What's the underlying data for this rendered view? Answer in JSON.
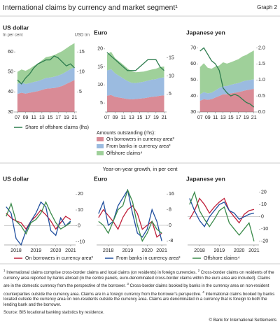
{
  "header": {
    "title": "International claims by currency and market segment¹",
    "graph_label": "Graph 2"
  },
  "legend_heading": "Amounts outstanding (rhs):",
  "section_title": "Year-on-year growth, in per cent",
  "chart_data": [
    {
      "type": "area",
      "title": "US dollar",
      "y_label": "In per cent",
      "y2_label": "USD trn",
      "x": [
        2007,
        2008,
        2009,
        2010,
        2011,
        2012,
        2013,
        2014,
        2015,
        2016,
        2017,
        2018,
        2019,
        2020,
        2021
      ],
      "xlim": [
        2006.5,
        2021.6
      ],
      "xticks": [
        {
          "value": 2007,
          "label": "07"
        },
        {
          "value": 2009,
          "label": "09"
        },
        {
          "value": 2011,
          "label": "11"
        },
        {
          "value": 2013,
          "label": "13"
        },
        {
          "value": 2015,
          "label": "15"
        },
        {
          "value": 2017,
          "label": "17"
        },
        {
          "value": 2019,
          "label": "19"
        },
        {
          "value": 2021,
          "label": "21"
        }
      ],
      "ylim": [
        30,
        66
      ],
      "yticks": [
        30,
        40,
        50,
        60
      ],
      "y2lim": [
        0,
        18
      ],
      "y2ticks": [
        5,
        10,
        15
      ],
      "stacked": true,
      "series": [
        {
          "name": "On borrowers in currency area²",
          "color": "#d98b96",
          "axis": "y2",
          "values": [
            4.5,
            4.8,
            4.6,
            4.8,
            5.0,
            5.2,
            5.5,
            5.8,
            5.9,
            6.0,
            6.2,
            6.5,
            7.0,
            7.5,
            8.0
          ]
        },
        {
          "name": "From banks in currency area³",
          "color": "#9bbbe0",
          "axis": "y2",
          "values": [
            2.5,
            2.6,
            2.4,
            2.4,
            2.5,
            2.5,
            2.6,
            2.7,
            2.7,
            2.8,
            2.9,
            3.0,
            3.1,
            3.2,
            3.2
          ]
        },
        {
          "name": "Offshore claims⁴",
          "color": "#9fd09a",
          "axis": "y2",
          "values": [
            3.0,
            3.2,
            3.3,
            3.6,
            4.0,
            4.4,
            4.8,
            5.2,
            5.3,
            5.4,
            5.6,
            5.7,
            5.8,
            5.9,
            6.0
          ]
        },
        {
          "name": "Share of offshore claims (lhs)",
          "color": "#2e7d4f",
          "values": [
            46,
            44,
            47,
            49,
            52,
            54,
            55,
            56,
            56,
            58,
            57,
            55,
            53,
            54,
            52
          ]
        }
      ]
    },
    {
      "type": "area",
      "title": "Euro",
      "x": [
        2007,
        2008,
        2009,
        2010,
        2011,
        2012,
        2013,
        2014,
        2015,
        2016,
        2017,
        2018,
        2019,
        2020,
        2021
      ],
      "xlim": [
        2006.5,
        2021.6
      ],
      "xticks": [
        {
          "value": 2007,
          "label": "07"
        },
        {
          "value": 2009,
          "label": "09"
        },
        {
          "value": 2011,
          "label": "11"
        },
        {
          "value": 2013,
          "label": "13"
        },
        {
          "value": 2015,
          "label": "15"
        },
        {
          "value": 2017,
          "label": "17"
        },
        {
          "value": 2019,
          "label": "19"
        },
        {
          "value": 2021,
          "label": "21"
        }
      ],
      "ylim": [
        2.5,
        22.5
      ],
      "yticks": [
        5,
        10,
        15,
        20
      ],
      "y2lim": [
        0,
        20
      ],
      "y2ticks": [
        5,
        10,
        15
      ],
      "stacked": true,
      "series": [
        {
          "name": "On borrowers in currency area²",
          "color": "#d98b96",
          "axis": "y2",
          "values": [
            4.5,
            4.7,
            4.2,
            4.0,
            3.8,
            3.6,
            3.5,
            3.6,
            3.7,
            3.8,
            4.0,
            4.2,
            4.3,
            4.5,
            4.6
          ]
        },
        {
          "name": "From banks in currency area³",
          "color": "#9bbbe0",
          "axis": "y2",
          "values": [
            7.0,
            7.2,
            6.5,
            6.0,
            5.5,
            5.0,
            4.6,
            4.4,
            4.5,
            4.6,
            4.7,
            4.8,
            4.8,
            5.0,
            5.0
          ]
        },
        {
          "name": "Offshore claims⁴",
          "color": "#9fd09a",
          "axis": "y2",
          "values": [
            4.5,
            4.8,
            4.2,
            4.0,
            3.8,
            3.5,
            3.2,
            3.0,
            2.9,
            2.8,
            2.8,
            2.8,
            2.9,
            3.0,
            3.0
          ]
        },
        {
          "name": "Share of offshore claims (lhs)",
          "color": "#2e7d4f",
          "values": [
            19,
            18,
            17,
            16,
            15,
            14,
            14,
            14,
            15,
            16,
            17,
            17,
            17,
            15,
            14
          ]
        }
      ]
    },
    {
      "type": "area",
      "title": "Japanese yen",
      "x": [
        2007,
        2008,
        2009,
        2010,
        2011,
        2012,
        2013,
        2014,
        2015,
        2016,
        2017,
        2018,
        2019,
        2020,
        2021
      ],
      "xlim": [
        2006.5,
        2021.6
      ],
      "xticks": [
        {
          "value": 2007,
          "label": "07"
        },
        {
          "value": 2009,
          "label": "09"
        },
        {
          "value": 2011,
          "label": "11"
        },
        {
          "value": 2013,
          "label": "13"
        },
        {
          "value": 2015,
          "label": "15"
        },
        {
          "value": 2017,
          "label": "17"
        },
        {
          "value": 2019,
          "label": "19"
        },
        {
          "value": 2021,
          "label": "21"
        }
      ],
      "ylim": [
        30,
        75
      ],
      "yticks": [
        30,
        40,
        50,
        60,
        70
      ],
      "y2lim": [
        0,
        2.25
      ],
      "y2ticks": [
        {
          "value": 0,
          "label": "0.0"
        },
        0.5,
        {
          "value": 1,
          "label": "1.0"
        },
        1.5,
        {
          "value": 2,
          "label": "2.0"
        }
      ],
      "stacked": true,
      "series": [
        {
          "name": "On borrowers in currency area²",
          "color": "#d98b96",
          "axis": "y2",
          "values": [
            0.35,
            0.4,
            0.38,
            0.4,
            0.45,
            0.5,
            0.55,
            0.55,
            0.58,
            0.6,
            0.62,
            0.65,
            0.68,
            0.7,
            0.72
          ]
        },
        {
          "name": "From banks in currency area³",
          "color": "#9bbbe0",
          "axis": "y2",
          "values": [
            0.2,
            0.22,
            0.2,
            0.2,
            0.22,
            0.25,
            0.25,
            0.26,
            0.27,
            0.28,
            0.28,
            0.3,
            0.3,
            0.3,
            0.3
          ]
        },
        {
          "name": "Offshore claims⁴",
          "color": "#9fd09a",
          "axis": "y2",
          "values": [
            0.85,
            0.9,
            0.8,
            0.75,
            0.75,
            0.7,
            0.75,
            0.7,
            0.7,
            0.72,
            0.75,
            0.78,
            0.8,
            0.85,
            0.9
          ]
        },
        {
          "name": "Share of offshore claims (lhs)",
          "color": "#2e7d4f",
          "values": [
            68,
            70,
            66,
            62,
            60,
            56,
            45,
            42,
            40,
            41,
            40,
            38,
            36,
            35,
            33
          ]
        }
      ]
    },
    {
      "type": "line",
      "title": "US dollar",
      "y_axis_position": "right",
      "x": [
        2018,
        2018.25,
        2018.5,
        2018.75,
        2019,
        2019.25,
        2019.5,
        2019.75,
        2020,
        2020.25,
        2020.5,
        2020.75,
        2021,
        2021.25
      ],
      "xlim": [
        2017.9,
        2021.5
      ],
      "xticks": [
        {
          "value": 2018.5,
          "label": "2018"
        },
        {
          "value": 2019.5,
          "label": "2019"
        },
        {
          "value": 2020.5,
          "label": "2020"
        },
        {
          "value": 2021.25,
          "label": "2021"
        }
      ],
      "ylim": [
        -12,
        25
      ],
      "yticks": [
        -10,
        0,
        10,
        20
      ],
      "series": [
        {
          "name": "On borrowers in currency area²",
          "color": "#c0203a",
          "values": [
            8,
            5,
            3,
            2,
            -2,
            3,
            6,
            10,
            7,
            3,
            -2,
            2,
            6,
            4
          ]
        },
        {
          "name": "From banks in currency area³",
          "color": "#1f4e9e",
          "values": [
            12,
            8,
            -8,
            -12,
            -3,
            3,
            8,
            15,
            12,
            -3,
            -6,
            5,
            0,
            3
          ]
        },
        {
          "name": "Offshore claims⁴",
          "color": "#3a8a4a",
          "values": [
            6,
            14,
            3,
            0,
            -5,
            2,
            4,
            8,
            15,
            8,
            2,
            -2,
            0,
            2
          ]
        }
      ]
    },
    {
      "type": "line",
      "title": "Euro",
      "y_axis_position": "right",
      "x": [
        2018,
        2018.25,
        2018.5,
        2018.75,
        2019,
        2019.25,
        2019.5,
        2019.75,
        2020,
        2020.25,
        2020.5,
        2020.75,
        2021,
        2021.25
      ],
      "xlim": [
        2017.9,
        2021.5
      ],
      "xticks": [
        {
          "value": 2018.5,
          "label": "2018"
        },
        {
          "value": 2019.5,
          "label": "2019"
        },
        {
          "value": 2020.5,
          "label": "2020"
        },
        {
          "value": 2021.25,
          "label": "2021"
        }
      ],
      "ylim": [
        -10,
        20
      ],
      "yticks": [
        -8,
        0,
        8,
        16
      ],
      "series": [
        {
          "name": "On borrowers in currency area²",
          "color": "#c0203a",
          "values": [
            4,
            8,
            5,
            2,
            -2,
            4,
            8,
            10,
            6,
            -2,
            0,
            2,
            -6,
            -4
          ]
        },
        {
          "name": "From banks in currency area³",
          "color": "#1f4e9e",
          "values": [
            6,
            12,
            0,
            2,
            10,
            14,
            18,
            6,
            -4,
            -6,
            -2,
            8,
            2,
            -8
          ]
        },
        {
          "name": "Offshore claims⁴",
          "color": "#3a8a4a",
          "values": [
            2,
            0,
            -4,
            2,
            8,
            10,
            18,
            12,
            0,
            -8,
            -4,
            2,
            -2,
            -4
          ]
        }
      ]
    },
    {
      "type": "line",
      "title": "Japanese yen",
      "y_axis_position": "right",
      "x": [
        2018,
        2018.25,
        2018.5,
        2018.75,
        2019,
        2019.25,
        2019.5,
        2019.75,
        2020,
        2020.25,
        2020.5,
        2020.75,
        2021,
        2021.25
      ],
      "xlim": [
        2017.9,
        2021.5
      ],
      "xticks": [
        {
          "value": 2018.5,
          "label": "2018"
        },
        {
          "value": 2019.5,
          "label": "2019"
        },
        {
          "value": 2020.5,
          "label": "2020"
        },
        {
          "value": 2021.25,
          "label": "2021"
        }
      ],
      "ylim": [
        -23,
        25
      ],
      "yticks": [
        -20,
        -10,
        0,
        10,
        20
      ],
      "series": [
        {
          "name": "On borrowers in currency area²",
          "color": "#c0203a",
          "values": [
            -2,
            5,
            15,
            10,
            3,
            8,
            12,
            15,
            5,
            0,
            -5,
            2,
            5,
            6
          ]
        },
        {
          "name": "From banks in currency area³",
          "color": "#1f4e9e",
          "values": [
            15,
            5,
            -3,
            -8,
            0,
            5,
            10,
            12,
            5,
            3,
            -2,
            0,
            2,
            3
          ]
        },
        {
          "name": "Offshore claims⁴",
          "color": "#3a8a4a",
          "values": [
            10,
            20,
            5,
            -2,
            -8,
            -2,
            5,
            8,
            -5,
            -10,
            -15,
            -10,
            -5,
            -20
          ]
        }
      ]
    }
  ],
  "footnotes": [
    {
      "mark": "1",
      "text": "International claims comprise cross-border claims and local claims (on residents) in foreign currencies."
    },
    {
      "mark": "2",
      "text": "Cross-border claims on residents of the currency area reported by banks abroad (in the centre panels, euro-denominated cross-border claims within the euro area are included). Claims are in the domestic currency from the perspective of the borrower."
    },
    {
      "mark": "3",
      "text": "Cross-border claims booked by banks in the currency area on non-resident counterparties outside the currency area. Claims are in a foreign currency from the borrower's perspective."
    },
    {
      "mark": "4",
      "text": "International claims booked by banks located outside the currency area on non-residents outside the currency area. Claims are denominated in a currency that is foreign to both the lending bank and the borrower."
    }
  ],
  "source": "Source: BIS locational banking statistics by residence.",
  "copyright": "© Bank for International Settlements"
}
